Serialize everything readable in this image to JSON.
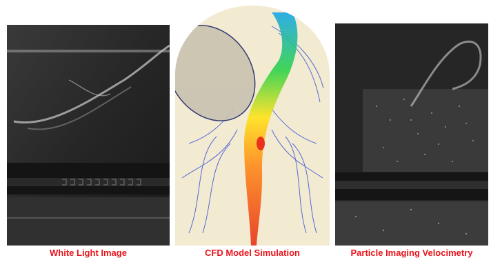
{
  "panels": [
    {
      "caption": "White Light Image"
    },
    {
      "caption": "CFD Model Simulation"
    },
    {
      "caption": "Particle Imaging Velocimetry"
    }
  ],
  "colors": {
    "caption": "#e8141b",
    "cfd_background": "#f3ead2",
    "streamline_blue": "#1f3fd8",
    "jet_core": "#e8321a"
  }
}
